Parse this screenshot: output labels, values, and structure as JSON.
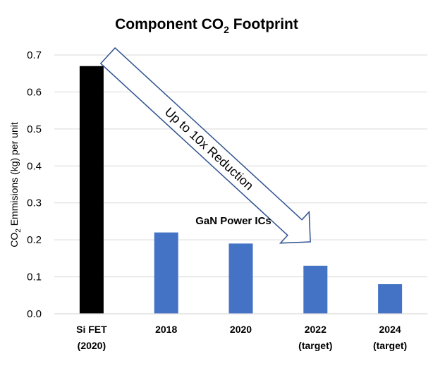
{
  "chart_data": {
    "type": "bar",
    "title": "Component CO",
    "title_sub": "2",
    "title_suffix": " Footprint",
    "ylabel_prefix": "CO",
    "ylabel_sub": "2",
    "ylabel_suffix": "  Emmisions (kg) per unit",
    "xlabel": "",
    "ylim": [
      0,
      0.7
    ],
    "yticks": [
      "0.0",
      "0.1",
      "0.2",
      "0.3",
      "0.4",
      "0.5",
      "0.6",
      "0.7"
    ],
    "grid": true,
    "categories": [
      {
        "line1": "Si FET",
        "line2": "(2020)"
      },
      {
        "line1": "2018",
        "line2": ""
      },
      {
        "line1": "2020",
        "line2": ""
      },
      {
        "line1": "2022",
        "line2": "(target)"
      },
      {
        "line1": "2024",
        "line2": "(target)"
      }
    ],
    "values": [
      0.67,
      0.22,
      0.19,
      0.13,
      0.08
    ],
    "bar_colors": [
      "#000000",
      "#4472c4",
      "#4472c4",
      "#4472c4",
      "#4472c4"
    ],
    "annotations": {
      "group_label": "GaN Power ICs",
      "arrow_label": "Up to 10x Reduction"
    }
  }
}
